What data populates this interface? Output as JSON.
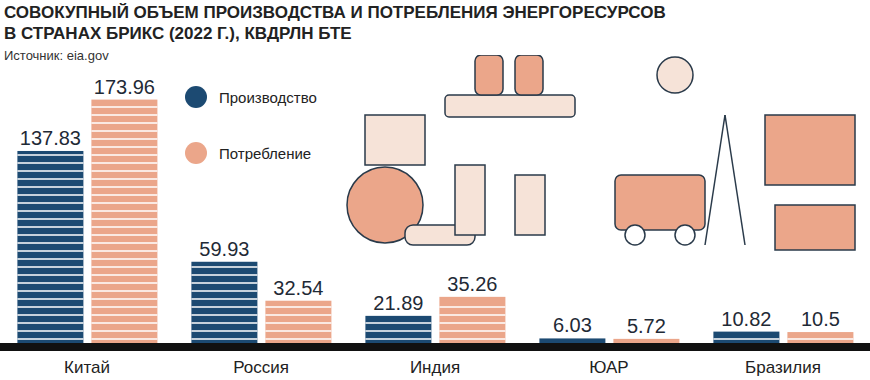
{
  "chart_data": {
    "type": "bar",
    "title": "СОВОКУПНЫЙ ОБЪЕМ ПРОИЗВОДСТВА И ПОТРЕБЛЕНИЯ ЭНЕРГОРЕСУРСОВ",
    "subtitle": "В СТРАНАХ БРИКС (2022 Г.), КВДРЛН БТЕ",
    "source": "Источник: eia.gov",
    "categories": [
      "Китай",
      "Россия",
      "Индия",
      "ЮАР",
      "Бразилия"
    ],
    "series": [
      {
        "name": "Производство",
        "color": "#1c4a72",
        "values": [
          137.83,
          59.93,
          21.89,
          6.03,
          10.82
        ]
      },
      {
        "name": "Потребление",
        "color": "#eba68a",
        "values": [
          173.96,
          32.54,
          35.26,
          5.72,
          10.5
        ]
      }
    ],
    "ylim": [
      0,
      180
    ],
    "legend": "top-left",
    "data_labels": true,
    "tick_labels": "x",
    "grid": false
  }
}
